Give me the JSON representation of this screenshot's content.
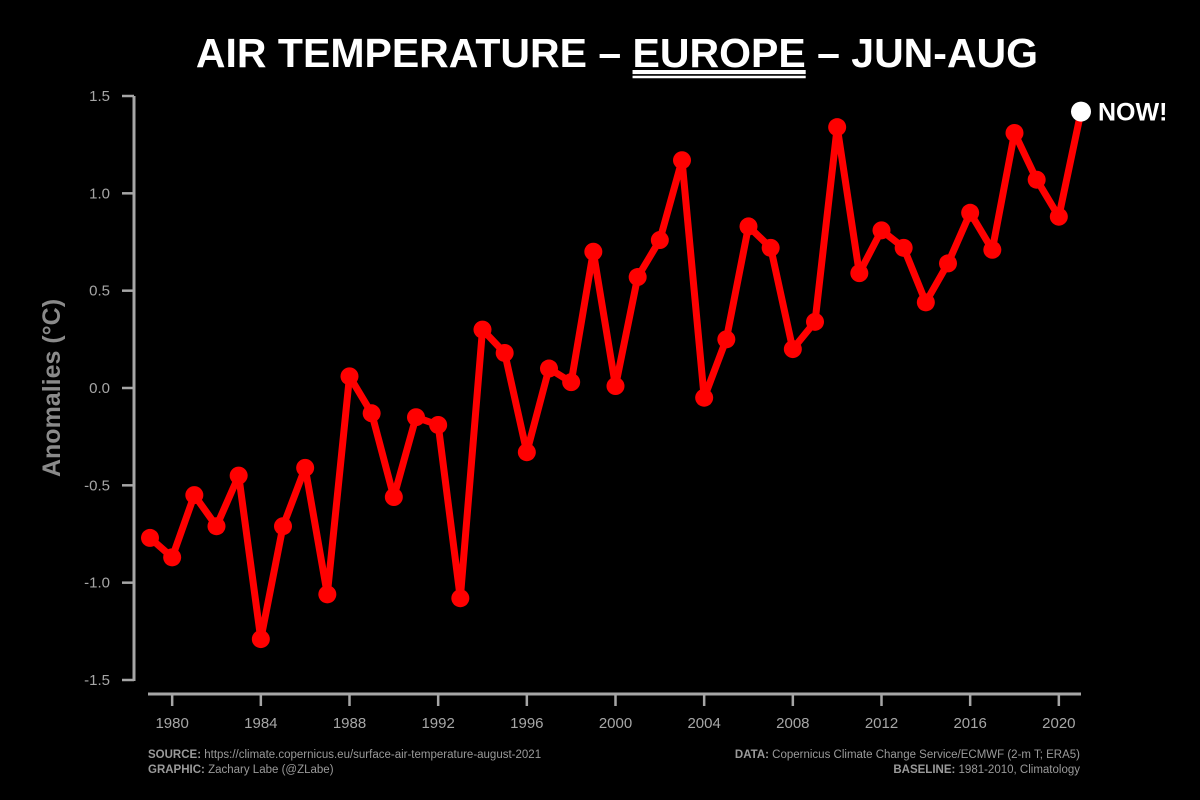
{
  "chart_data": {
    "type": "line",
    "title_parts": [
      "AIR TEMPERATURE – ",
      "EUROPE",
      " – JUN-AUG"
    ],
    "ylabel": "Anomalies (°C)",
    "xlabel": "",
    "xlim": [
      1979,
      2021
    ],
    "ylim": [
      -1.5,
      1.5
    ],
    "yticks": [
      -1.5,
      -1.0,
      -0.5,
      0.0,
      0.5,
      1.0,
      1.5
    ],
    "ytick_labels": [
      "-1.5",
      "-1.0",
      "-0.5",
      "0.0",
      "0.5",
      "1.0",
      "1.5"
    ],
    "xticks": [
      1980,
      1984,
      1988,
      1992,
      1996,
      2000,
      2004,
      2008,
      2012,
      2016,
      2020
    ],
    "xtick_labels": [
      "1980",
      "1984",
      "1988",
      "1992",
      "1996",
      "2000",
      "2004",
      "2008",
      "2012",
      "2016",
      "2020"
    ],
    "grid": false,
    "series": [
      {
        "x": [
          1979,
          1980,
          1981,
          1982,
          1983,
          1984,
          1985,
          1986,
          1987,
          1988,
          1989,
          1990,
          1991,
          1992,
          1993,
          1994,
          1995,
          1996,
          1997,
          1998,
          1999,
          2000,
          2001,
          2002,
          2003,
          2004,
          2005,
          2006,
          2007,
          2008,
          2009,
          2010,
          2011,
          2012,
          2013,
          2014,
          2015,
          2016,
          2017,
          2018,
          2019,
          2020,
          2021
        ],
        "values": [
          -0.77,
          -0.87,
          -0.55,
          -0.71,
          -0.45,
          -1.29,
          -0.71,
          -0.41,
          -1.06,
          0.06,
          -0.13,
          -0.56,
          -0.15,
          -0.19,
          -1.08,
          0.3,
          0.18,
          -0.33,
          0.1,
          0.03,
          0.7,
          0.01,
          0.57,
          0.76,
          1.17,
          -0.05,
          0.25,
          0.83,
          0.72,
          0.2,
          0.34,
          1.34,
          0.59,
          0.81,
          0.72,
          0.44,
          0.64,
          0.9,
          0.71,
          1.31,
          1.07,
          0.88,
          1.42
        ]
      }
    ],
    "line_color": "#ff0000",
    "highlight_color": "#ffffff",
    "annotation": {
      "text": "NOW!",
      "x": 2021,
      "y": 1.42
    }
  },
  "footer": {
    "source_label": "SOURCE:",
    "source_text": " https://climate.copernicus.eu/surface-air-temperature-august-2021",
    "graphic_label": "GRAPHIC:",
    "graphic_text": " Zachary Labe (@ZLabe)",
    "data_label": "DATA:",
    "data_text": " Copernicus Climate Change Service/ECMWF (2-m T; ERA5)",
    "baseline_label": "BASELINE:",
    "baseline_text": " 1981-2010, Climatology"
  }
}
